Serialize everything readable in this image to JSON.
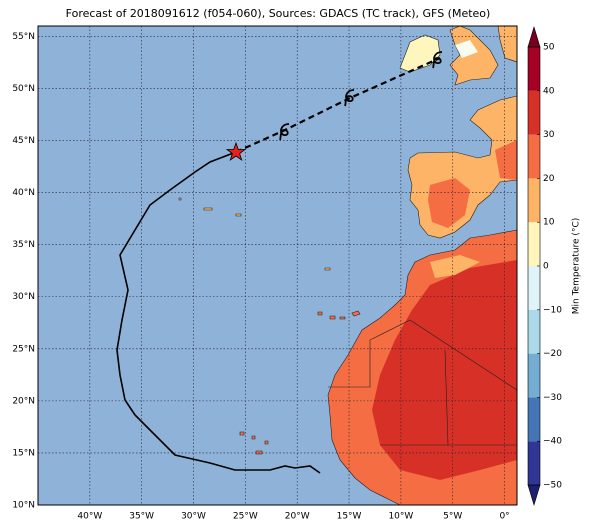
{
  "map": {
    "title": "Forecast of 2018091612 (f054-060), Sources: GDACS (TC track), GFS (Meteo)",
    "xlim": [
      -45,
      1.2
    ],
    "ylim": [
      10,
      56
    ],
    "xticks": [
      {
        "value": -40,
        "label": "40°W"
      },
      {
        "value": -35,
        "label": "35°W"
      },
      {
        "value": -30,
        "label": "30°W"
      },
      {
        "value": -25,
        "label": "25°W"
      },
      {
        "value": -20,
        "label": "20°W"
      },
      {
        "value": -15,
        "label": "15°W"
      },
      {
        "value": -10,
        "label": "10°W"
      },
      {
        "value": -5,
        "label": "5°W"
      },
      {
        "value": 0,
        "label": "0°"
      }
    ],
    "yticks": [
      {
        "value": 10,
        "label": "10°N"
      },
      {
        "value": 15,
        "label": "15°N"
      },
      {
        "value": 20,
        "label": "20°N"
      },
      {
        "value": 25,
        "label": "25°N"
      },
      {
        "value": 30,
        "label": "30°N"
      },
      {
        "value": 35,
        "label": "35°N"
      },
      {
        "value": 40,
        "label": "40°N"
      },
      {
        "value": 45,
        "label": "45°N"
      },
      {
        "value": 50,
        "label": "50°N"
      },
      {
        "value": 55,
        "label": "55°N"
      }
    ],
    "grid": true,
    "ocean_color": "#8fb2d8",
    "colorbar": {
      "label": "Min Temperature (°C)",
      "clim": [
        -50,
        50
      ],
      "ticks": [
        {
          "value": -50,
          "label": "−50"
        },
        {
          "value": -40,
          "label": "−40"
        },
        {
          "value": -30,
          "label": "−30"
        },
        {
          "value": -20,
          "label": "−20"
        },
        {
          "value": -10,
          "label": "−10"
        },
        0,
        10,
        20,
        30,
        40,
        50
      ],
      "colors": [
        "#313695",
        "#4575b4",
        "#74add1",
        "#abd9e9",
        "#e0f3f8",
        "#fef6bd",
        "#fdb466",
        "#f46d43",
        "#d73027",
        "#a50026"
      ],
      "extend_colors": [
        "#1f1f70",
        "#7a0022"
      ]
    }
  }
}
